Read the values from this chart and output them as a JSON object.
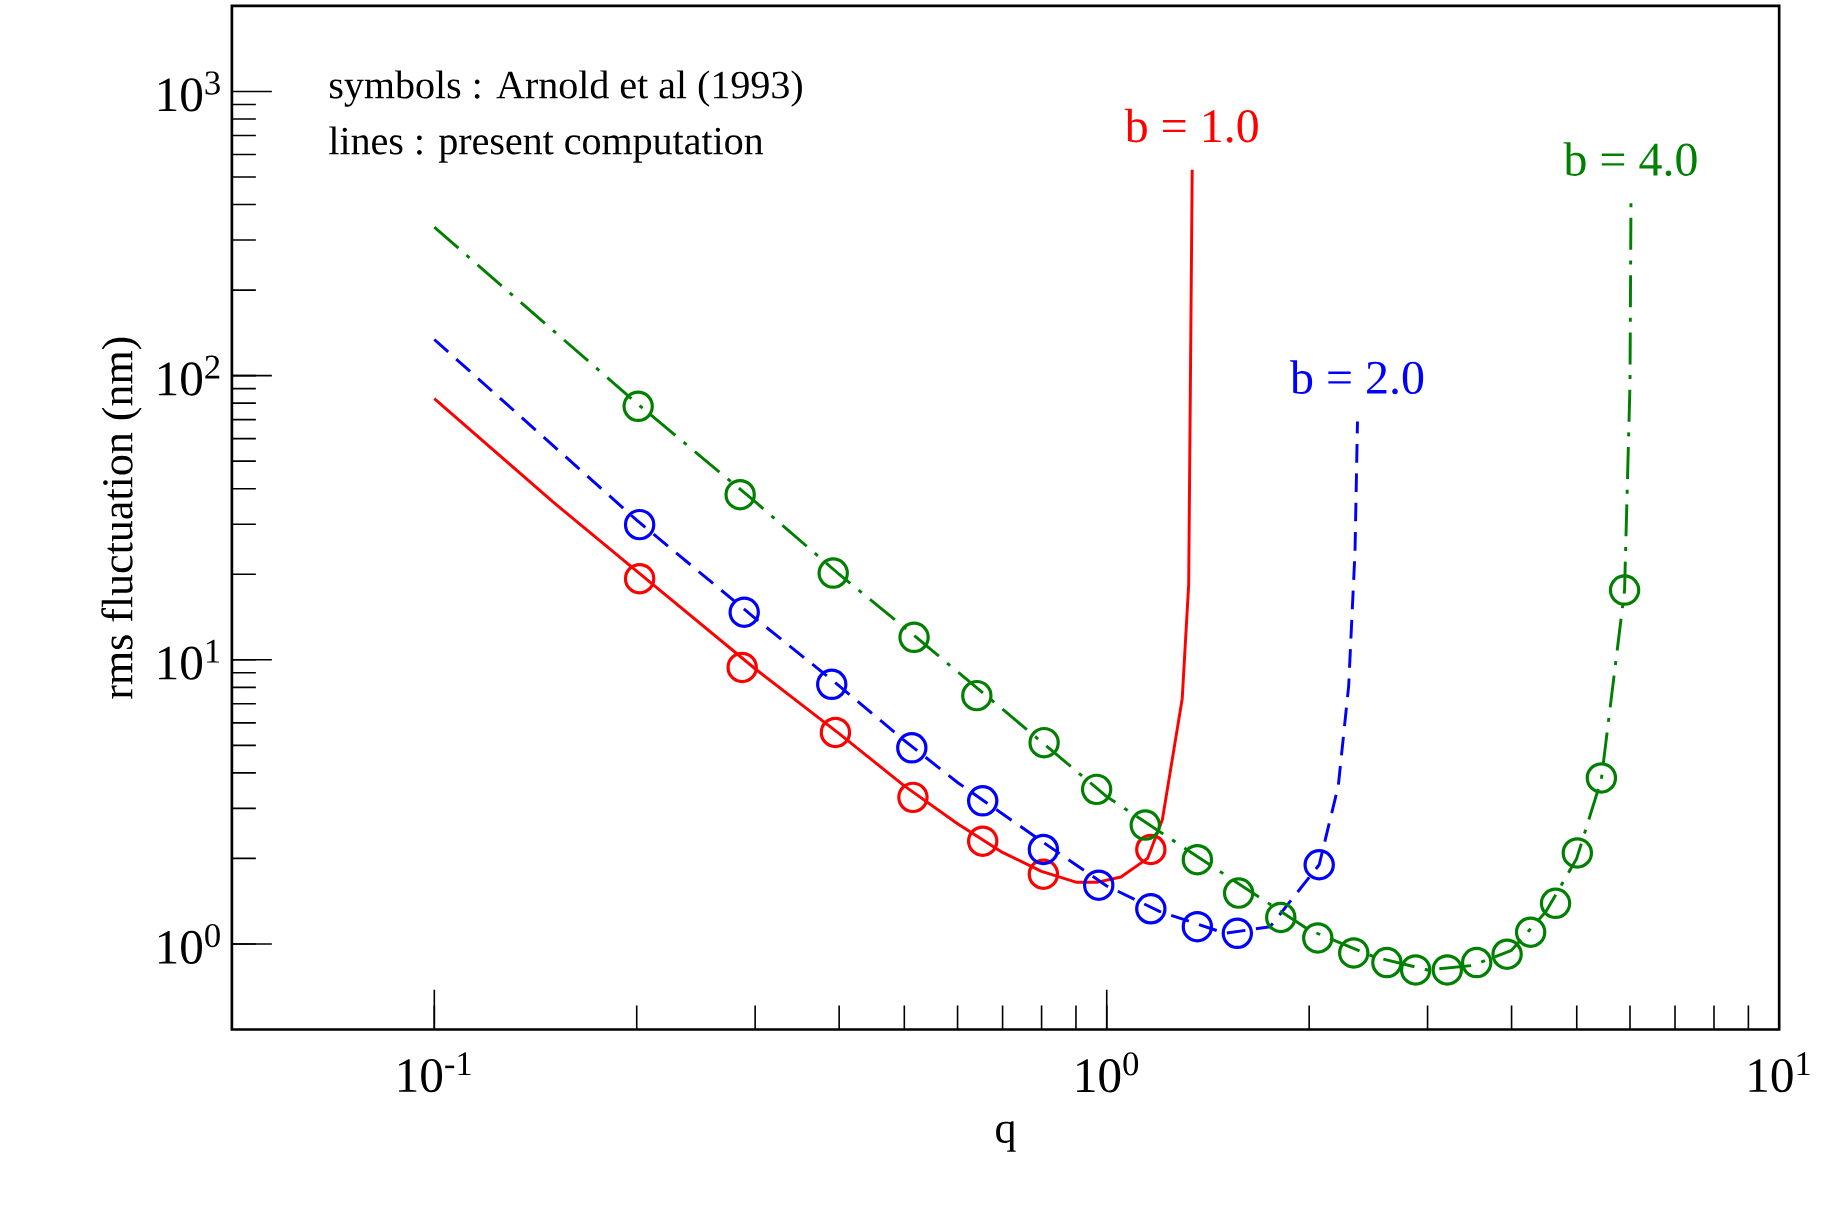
{
  "chart_data": {
    "type": "line",
    "xlabel": "q",
    "ylabel": "rms fluctuation (nm)",
    "log": "xy",
    "xlim": [
      0.05,
      10
    ],
    "ylim": [
      0.5,
      2000
    ],
    "xticks": [
      {
        "value": 0.1,
        "label": "10$^{-1}$"
      },
      {
        "value": 1,
        "label": "10$^{0}$"
      },
      {
        "value": 10,
        "label": "10$^{1}$"
      }
    ],
    "yticks": [
      {
        "value": 1,
        "label": "10$^{0}$"
      },
      {
        "value": 10,
        "label": "10$^{1}$"
      },
      {
        "value": 100,
        "label": "10$^{2}$"
      },
      {
        "value": 1000,
        "label": "10$^{3}$"
      }
    ],
    "annotations": [
      "symbols : Arnold et al (1993)",
      "lines       : present computation"
    ],
    "series": [
      {
        "name": "b = 1.0",
        "color": "#ff0000",
        "line_style": "solid",
        "marker": "none",
        "x": [
          0.1,
          0.15,
          0.2,
          0.3,
          0.4,
          0.5,
          0.6,
          0.7,
          0.8,
          0.9,
          0.97,
          1.05,
          1.15,
          1.21,
          1.295,
          1.324,
          1.34
        ],
        "values": [
          83,
          36,
          20.5,
          9.3,
          5.5,
          3.6,
          2.65,
          2.1,
          1.8,
          1.65,
          1.65,
          1.72,
          2.0,
          2.74,
          7.3,
          18.4,
          530
        ]
      },
      {
        "type": "scatter",
        "color": "#ff0000",
        "marker": "circle",
        "x": [
          0.202,
          0.287,
          0.395,
          0.515,
          0.654,
          0.805,
          1.163
        ],
        "values": [
          19.3,
          9.4,
          5.55,
          3.28,
          2.3,
          1.76,
          2.15
        ]
      },
      {
        "name": "b = 2.0",
        "color": "#0000ff",
        "line_style": "dashed",
        "marker": "none",
        "x": [
          0.1,
          0.2,
          0.3,
          0.4,
          0.5,
          0.6,
          0.8,
          1.0,
          1.2,
          1.5,
          1.75,
          2.07,
          2.21,
          2.29,
          2.34,
          2.36
        ],
        "values": [
          134,
          31,
          14,
          8.1,
          5.2,
          3.7,
          2.3,
          1.6,
          1.3,
          1.09,
          1.15,
          1.9,
          3.6,
          8.1,
          24,
          69
        ]
      },
      {
        "type": "scatter",
        "color": "#0000ff",
        "marker": "circle",
        "x": [
          0.202,
          0.289,
          0.39,
          0.513,
          0.654,
          0.805,
          0.973,
          1.163,
          1.364,
          1.564,
          2.07
        ],
        "values": [
          29.9,
          14.7,
          8.2,
          4.9,
          3.19,
          2.15,
          1.61,
          1.33,
          1.15,
          1.09,
          1.9
        ]
      },
      {
        "name": "b = 4.0",
        "color": "#008000",
        "line_style": "dashdot",
        "marker": "none",
        "x": [
          0.1,
          0.2,
          0.3,
          0.4,
          0.5,
          0.7,
          1.0,
          1.5,
          2.0,
          2.5,
          3.0,
          3.5,
          4.0,
          4.5,
          5.0,
          5.44,
          5.89,
          6.0,
          6.02
        ],
        "values": [
          333,
          80,
          36,
          20,
          13,
          6.7,
          3.3,
          1.75,
          1.12,
          0.9,
          0.81,
          0.84,
          0.95,
          1.3,
          2.0,
          3.8,
          17.6,
          93,
          404
        ]
      },
      {
        "type": "scatter",
        "color": "#008000",
        "marker": "circle",
        "x": [
          0.201,
          0.285,
          0.392,
          0.517,
          0.641,
          0.807,
          0.966,
          1.141,
          1.364,
          1.571,
          1.815,
          2.06,
          2.33,
          2.61,
          2.88,
          3.21,
          3.55,
          3.94,
          4.27,
          4.65,
          5.01,
          5.44,
          5.89
        ],
        "values": [
          78,
          38.1,
          20.2,
          12.0,
          7.48,
          5.11,
          3.5,
          2.62,
          1.98,
          1.51,
          1.24,
          1.05,
          0.93,
          0.86,
          0.81,
          0.81,
          0.86,
          0.92,
          1.1,
          1.39,
          2.09,
          3.84,
          17.6
        ]
      }
    ]
  }
}
